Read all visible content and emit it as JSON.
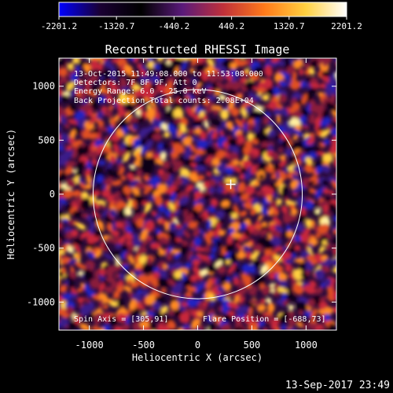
{
  "colorbar": {
    "tick_labels": [
      "-2201.2",
      "-1320.7",
      "-440.2",
      "440.2",
      "1320.7",
      "2201.2"
    ],
    "colormap": [
      "#0000ff",
      "#1a0033",
      "#000000",
      "#5a1a7a",
      "#c0303a",
      "#ff7a1a",
      "#ffd040",
      "#ffffff"
    ]
  },
  "title": "Reconstructed RHESSI Image",
  "info": {
    "line1": "13-Oct-2015 11:49:08.000 to 11:53:08.000",
    "line2": "Detectors: 7F 8F 9F, Att 0",
    "line3": "Energy Range: 6.0 - 25.0 keV",
    "line4": "Back Projection    Total counts: 2.08E+04"
  },
  "footer_left": "Spin Axis = [305,91]",
  "footer_right": "Flare Position = [-688,73]",
  "timestamp": "13-Sep-2017 23:49",
  "axes": {
    "xlabel": "Heliocentric X (arcsec)",
    "ylabel": "Heliocentric Y (arcsec)",
    "xlim": [
      -1280,
      1280
    ],
    "ylim": [
      -1260,
      1260
    ],
    "xticks": [
      -1000,
      -500,
      0,
      500,
      1000
    ],
    "yticks": [
      -1000,
      -500,
      0,
      500,
      1000
    ],
    "xtick_labels": [
      "-1000",
      "-500",
      "0",
      "500",
      "1000"
    ],
    "ytick_labels": [
      "-1000",
      "-500",
      "0",
      "500",
      "1000"
    ]
  },
  "solar_limb": {
    "center": [
      0,
      0
    ],
    "radius_arcsec": 965,
    "color": "#ffffff"
  },
  "marker": {
    "symbol": "+",
    "position": [
      305,
      91
    ]
  }
}
